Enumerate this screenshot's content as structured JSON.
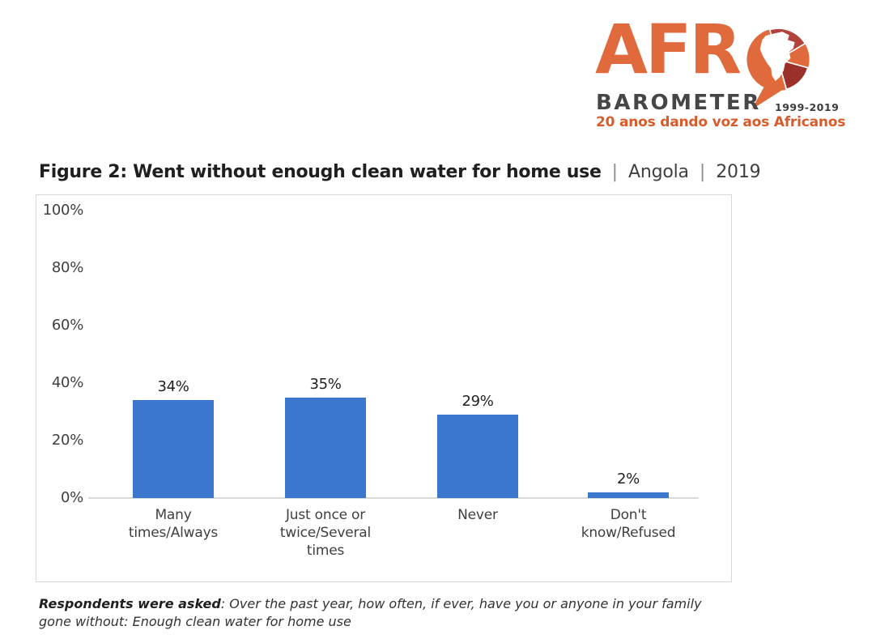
{
  "logo": {
    "brand_line1": "AFR",
    "brand_line2": "BAROMETER",
    "years": "1999-2019",
    "tagline": "20 anos dando voz aos Africanos"
  },
  "header": {
    "figure_label": "Figure 2: Went without enough clean water for home use",
    "separator": "|",
    "country": "Angola",
    "year": "2019"
  },
  "chart_data": {
    "type": "bar",
    "title": "Figure 2: Went without enough clean water for home use | Angola | 2019",
    "categories": [
      "Many times/Always",
      "Just once or twice/Several times",
      "Never",
      "Don't know/Refused"
    ],
    "values": [
      34,
      35,
      29,
      2
    ],
    "data_labels": [
      "34%",
      "35%",
      "29%",
      "2%"
    ],
    "unit": "%",
    "xlabel": "",
    "ylabel": "",
    "ylim": [
      0,
      100
    ],
    "yticks": [
      "100%",
      "80%",
      "60%",
      "40%",
      "20%",
      "0%"
    ],
    "grid": false,
    "legend": "none",
    "bar_color": "#3B77CC"
  },
  "footnote": {
    "label": "Respondents were asked",
    "text": ": Over the past year, how often, if ever, have you or anyone in your family\ngone without: Enough clean water for home use"
  },
  "theme": {
    "bar_blue": "#3B77CC",
    "logo_orange": "#E06A3C",
    "logo_red_top": "#B2423B",
    "logo_red_right": "#9A3029",
    "logo_gray": "#464646",
    "tagline_orange": "#D85C2B",
    "axis_gray": "#D9D9D9",
    "border_gray": "#D8D8D8"
  }
}
